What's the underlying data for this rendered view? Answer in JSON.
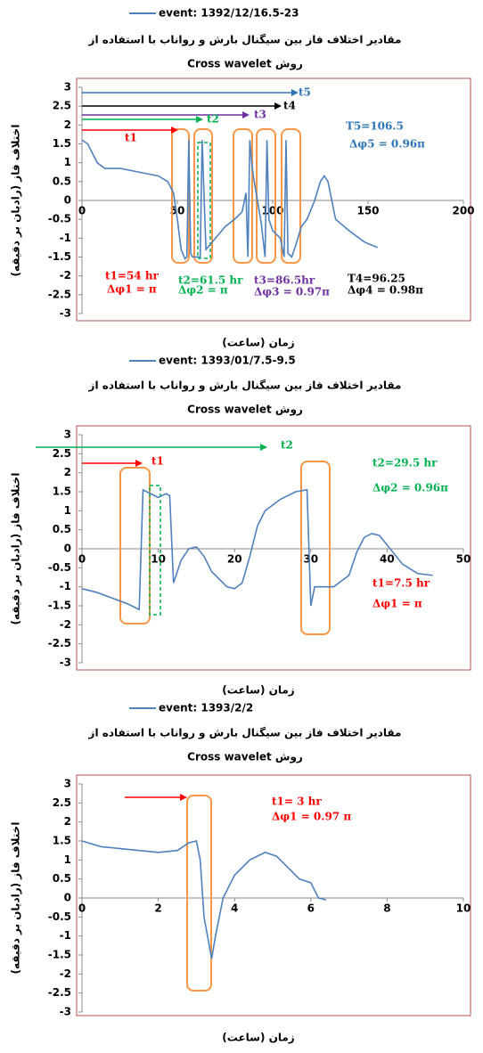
{
  "chart_data": [
    {
      "type": "line",
      "title": "مقادیر اختلاف فاز بین سیگنال بارش و رواناب با استفاده از",
      "subtitle": "روش  Cross wavelet",
      "x_label": "زمان (ساعت)",
      "y_label": "اختلاف فاز (رادیان بر دقیقه)",
      "x": [
        0,
        3,
        8,
        12,
        20,
        30,
        40,
        45,
        48,
        50,
        52,
        54,
        55,
        56,
        57,
        58,
        60,
        62,
        63,
        65,
        70,
        75,
        80,
        84,
        86,
        87,
        88,
        89,
        90,
        94,
        96,
        97,
        98,
        100,
        104,
        106,
        107,
        108,
        110,
        112,
        115,
        118,
        122,
        125,
        127,
        129,
        131,
        133,
        140,
        148,
        155
      ],
      "series": [
        {
          "name": "event: 1392/12/16.5-23",
          "color": "#4f81bd",
          "values": [
            1.6,
            1.5,
            1.0,
            0.85,
            0.85,
            0.75,
            0.65,
            0.5,
            0.2,
            -0.5,
            -1.3,
            -1.55,
            -1.5,
            1.6,
            -1.4,
            -1.5,
            -1.5,
            -1.5,
            1.6,
            -1.3,
            -1.0,
            -0.7,
            -0.5,
            -0.3,
            0.2,
            -1.5,
            1.6,
            1.0,
            0.6,
            -0.6,
            -1.5,
            1.6,
            -0.5,
            -0.8,
            -1.0,
            -1.5,
            1.6,
            -1.4,
            -1.5,
            -1.2,
            -0.7,
            -0.5,
            0.0,
            0.5,
            0.65,
            0.5,
            0.0,
            -0.5,
            -0.8,
            -1.1,
            -1.25
          ]
        }
      ],
      "xlim": [
        0,
        200
      ],
      "xticks": [
        0,
        50,
        100,
        150,
        200
      ],
      "ylim": [
        -3,
        3
      ],
      "yticks": [
        3,
        2.5,
        2,
        1.5,
        1,
        0.5,
        0,
        -0.5,
        -1,
        -1.5,
        -2,
        -2.5,
        -3
      ],
      "annotations": [
        {
          "text": "t5",
          "color": "#2e75b6"
        },
        {
          "text": "t4",
          "color": "#000000"
        },
        {
          "text": "t3",
          "color": "#7030a0"
        },
        {
          "text": "t2",
          "color": "#00b050"
        },
        {
          "text": "t1",
          "color": "#ff0000"
        },
        {
          "text": "T5=106.5",
          "color": "#2e75b6"
        },
        {
          "text": "Δφ5 = 0.96π",
          "color": "#2e75b6"
        },
        {
          "text": "t1=54 hr",
          "color": "#ff0000"
        },
        {
          "text": "Δφ1 = π",
          "color": "#ff0000"
        },
        {
          "text": "t2=61.5 hr",
          "color": "#00b050"
        },
        {
          "text": "Δφ2 = π",
          "color": "#00b050"
        },
        {
          "text": "t3=86.5hr",
          "color": "#7030a0"
        },
        {
          "text": "Δφ3 = 0.97π",
          "color": "#7030a0"
        },
        {
          "text": "T4=96.25",
          "color": "#000000"
        },
        {
          "text": "Δφ4 = 0.98π",
          "color": "#000000"
        }
      ]
    },
    {
      "type": "line",
      "title": "مقادیر اختلاف فاز بین سیگنال بارش و رواناب با استفاده از",
      "subtitle": "روش  Cross wavelet",
      "x_label": "زمان (ساعت)",
      "y_label": "اختلاف فاز (رادیان بر دقیقه)",
      "x": [
        0,
        2,
        4,
        6,
        7.5,
        8,
        9,
        10,
        11,
        11.5,
        12,
        13,
        14,
        15,
        16,
        17,
        19,
        20,
        21,
        22,
        23,
        24,
        26,
        28,
        29.5,
        30,
        30.5,
        33,
        35,
        36,
        37,
        38,
        39,
        40,
        42,
        44,
        46
      ],
      "series": [
        {
          "name": "event: 1393/01/7.5-9.5",
          "color": "#4f81bd",
          "values": [
            -1.05,
            -1.15,
            -1.3,
            -1.45,
            -1.6,
            1.55,
            1.45,
            1.35,
            1.45,
            1.4,
            -0.9,
            -0.3,
            0.0,
            0.05,
            -0.2,
            -0.6,
            -1.0,
            -1.05,
            -0.9,
            -0.2,
            0.6,
            1.0,
            1.3,
            1.5,
            1.55,
            -1.5,
            -1.0,
            -1.0,
            -0.7,
            -0.1,
            0.3,
            0.4,
            0.35,
            0.1,
            -0.4,
            -0.65,
            -0.7
          ]
        }
      ],
      "xlim": [
        0,
        50
      ],
      "xticks": [
        0,
        10,
        20,
        30,
        40,
        50
      ],
      "ylim": [
        -3,
        3
      ],
      "yticks": [
        3,
        2.5,
        2,
        1.5,
        1,
        0.5,
        0,
        -0.5,
        -1,
        -1.5,
        -2,
        -2.5,
        -3
      ],
      "annotations": [
        {
          "text": "t2",
          "color": "#00b050"
        },
        {
          "text": "t1",
          "color": "#ff0000"
        },
        {
          "text": "t2=29.5 hr",
          "color": "#00b050"
        },
        {
          "text": "Δφ2 = 0.96π",
          "color": "#00b050"
        },
        {
          "text": "t1=7.5 hr",
          "color": "#ff0000"
        },
        {
          "text": "Δφ1 = π",
          "color": "#ff0000"
        }
      ]
    },
    {
      "type": "line",
      "title": "مقادیر اختلاف فاز بین سیگنال بارش و رواناب با استفاده از",
      "subtitle": "روش  Cross wavelet",
      "x_label": "زمان (ساعت)",
      "y_label": "اختلاف فاز (رادیان بر دقیقه)",
      "x": [
        0,
        0.5,
        1,
        2,
        2.5,
        2.8,
        3,
        3.1,
        3.2,
        3.4,
        3.5,
        3.7,
        4,
        4.4,
        4.8,
        5.1,
        5.4,
        5.7,
        6,
        6.2,
        6.4
      ],
      "series": [
        {
          "name": "event: 1393/2/2",
          "color": "#4f81bd",
          "values": [
            1.5,
            1.35,
            1.3,
            1.2,
            1.25,
            1.45,
            1.5,
            1.0,
            -0.5,
            -1.6,
            -1.0,
            0.0,
            0.6,
            1.0,
            1.2,
            1.1,
            0.8,
            0.5,
            0.4,
            0.0,
            -0.05
          ]
        }
      ],
      "xlim": [
        0,
        10
      ],
      "xticks": [
        0,
        2,
        4,
        6,
        8,
        10
      ],
      "ylim": [
        -3,
        3
      ],
      "yticks": [
        3,
        2.5,
        2,
        1.5,
        1,
        0.5,
        0,
        -0.5,
        -1,
        -1.5,
        -2,
        -2.5,
        -3
      ],
      "annotations": [
        {
          "text": "t1= 3 hr",
          "color": "#ff0000"
        },
        {
          "text": "Δφ1 = 0.97 π",
          "color": "#ff0000"
        }
      ]
    }
  ]
}
